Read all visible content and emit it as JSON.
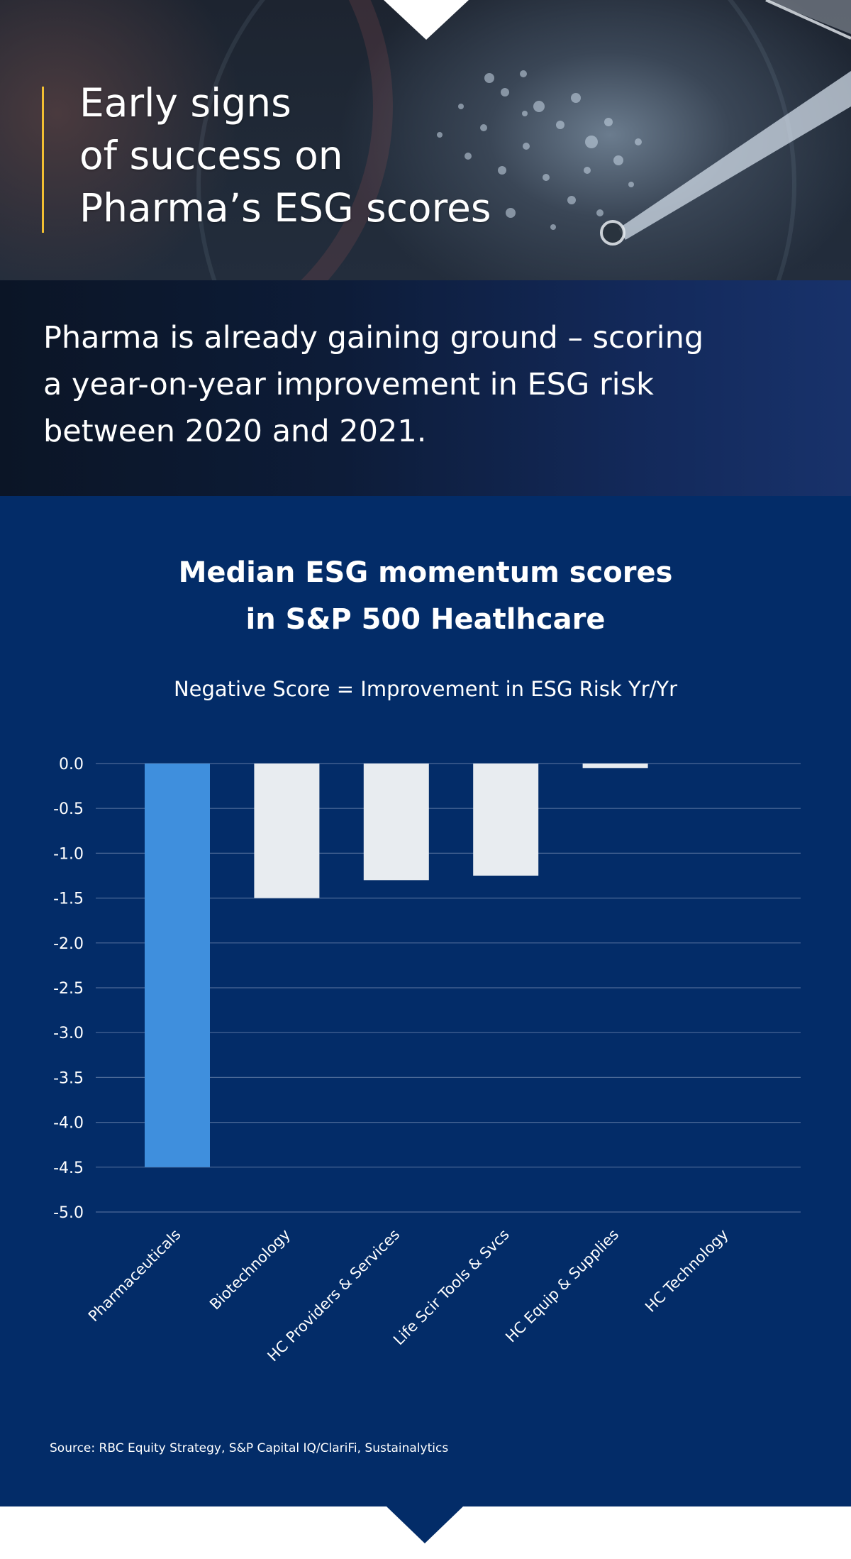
{
  "hero": {
    "title": "Early signs\nof success on\nPharma’s ESG scores"
  },
  "intro": {
    "text": "Pharma is already gaining ground – scoring\na year-on-year improvement in ESG risk\nbetween 2020 and 2021."
  },
  "chart_data": {
    "type": "bar",
    "title": "Median ESG momentum scores\nin S&P 500 Heatlhcare",
    "subtitle": "Negative Score = Improvement in ESG Risk Yr/Yr",
    "xlabel": "",
    "ylabel": "",
    "categories": [
      "Pharmaceuticals",
      "Biotechnology",
      "HC Providers & Services",
      "Life Scir Tools & Svcs",
      "HC Equip & Supplies",
      "HC Technology"
    ],
    "values": [
      -4.5,
      -1.5,
      -1.3,
      -1.25,
      -0.05,
      0.0
    ],
    "ylim": [
      -5.0,
      0.0
    ],
    "yticks": [
      "0.0",
      "-0.5",
      "-1.0",
      "-1.5",
      "-2.0",
      "-2.5",
      "-3.0",
      "-3.5",
      "-4.0",
      "-4.5",
      "-5.0"
    ],
    "grid": true,
    "bar_colors": [
      "#3f8fdd",
      "#e8ecf0",
      "#e8ecf0",
      "#e8ecf0",
      "#e8ecf0",
      "#e8ecf0"
    ],
    "source": "Source: RBC Equity Strategy, S&P Capital IQ/ClariFi, Sustainalytics"
  },
  "colors": {
    "panel": "#032c68",
    "accent_bar": "#f2bf32",
    "highlight": "#3f8fdd",
    "neutral_bar": "#e8ecf0",
    "grid": "#4d6a98"
  }
}
